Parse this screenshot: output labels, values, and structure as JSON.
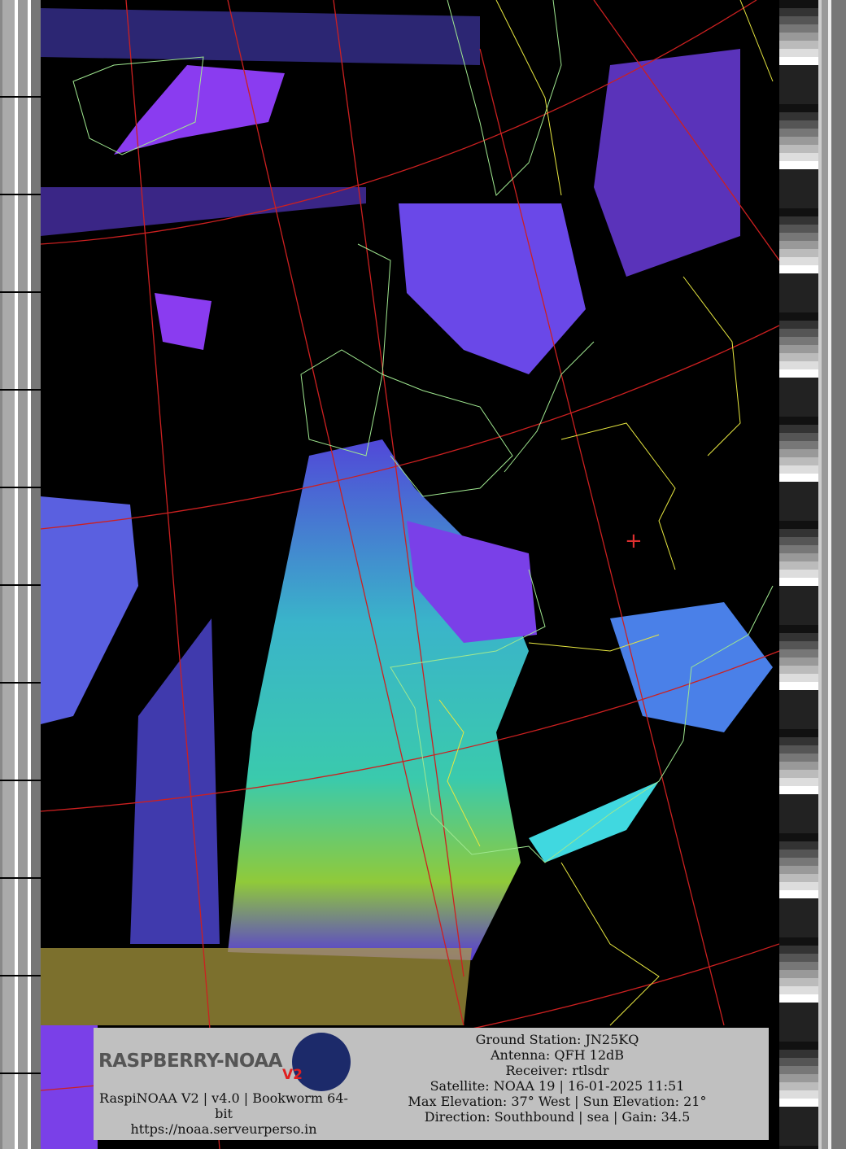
{
  "overlay": {
    "logo_text": "RASPBERRY-NOAA",
    "logo_version": "V2",
    "software_line": "RaspiNOAA V2 | v4.0 | Bookworm 64-bit",
    "website": "https://noaa.serveurperso.in",
    "details": [
      "Ground Station: JN25KQ",
      "Antenna: QFH 12dB",
      "Receiver: rtlsdr",
      "Satellite: NOAA 19 | 16-01-2025 11:51",
      "Max Elevation: 37° West | Sun Elevation: 21°",
      "Direction: Southbound | sea | Gain: 34.5"
    ]
  },
  "colors": {
    "graticule": "#cc2020",
    "coastline": "#a0e890",
    "borders": "#e8e840",
    "cloud_low": "#8a3cf0",
    "cloud_mid": "#3060f0",
    "cloud_high": "#40e0d0",
    "cloud_top": "#c8e030"
  },
  "marker": {
    "icon": "ground-station-cross"
  }
}
